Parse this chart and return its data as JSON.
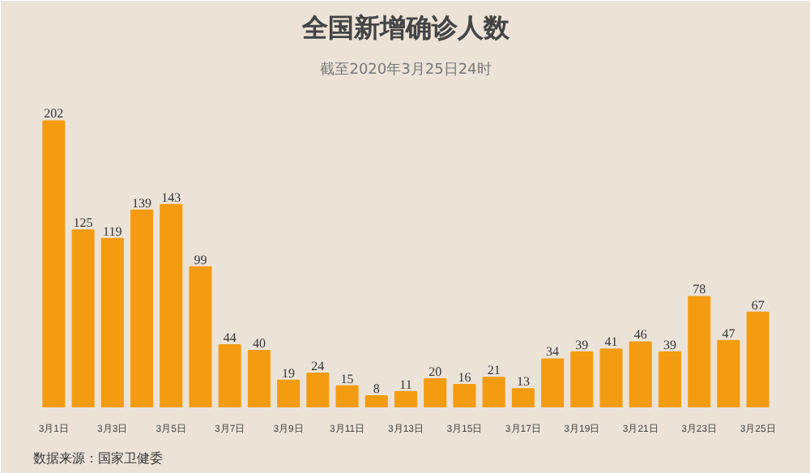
{
  "chart_data": {
    "type": "bar",
    "title": "全国新增确诊人数",
    "subtitle": "截至2020年3月25日24时",
    "categories": [
      "3月1日",
      null,
      "3月3日",
      null,
      "3月5日",
      null,
      "3月7日",
      null,
      "3月9日",
      null,
      "3月11日",
      null,
      "3月13日",
      null,
      "3月15日",
      null,
      "3月17日",
      null,
      "3月19日",
      null,
      "3月21日",
      null,
      "3月23日",
      null,
      "3月25日"
    ],
    "values": [
      202,
      125,
      119,
      139,
      143,
      99,
      44,
      40,
      19,
      24,
      15,
      8,
      11,
      20,
      16,
      21,
      13,
      34,
      39,
      41,
      46,
      39,
      78,
      47,
      67
    ],
    "color": "#f39c12",
    "data_labels": true,
    "grid": false,
    "annotations": [
      "数据来源：国家卫健委"
    ]
  }
}
